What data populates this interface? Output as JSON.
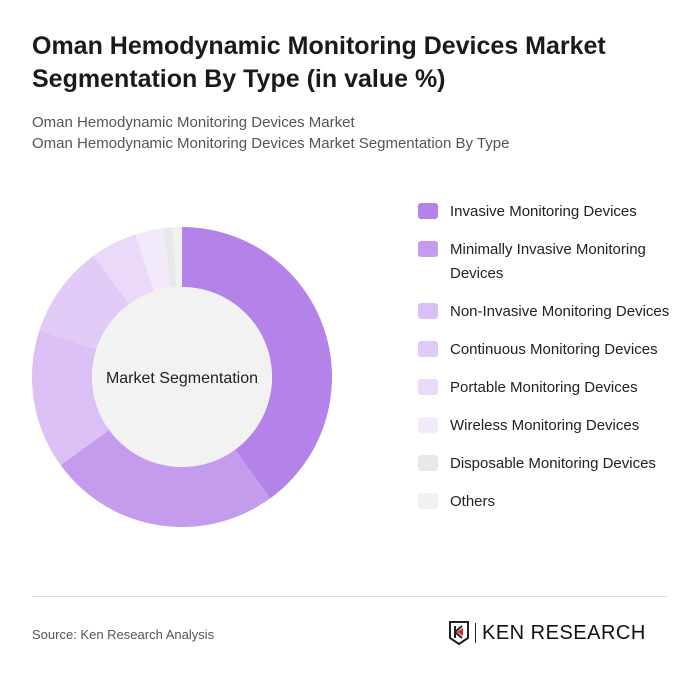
{
  "title": "Oman Hemodynamic Monitoring Devices Market Segmentation By Type (in value %)",
  "subtitle1": "Oman Hemodynamic Monitoring Devices Market",
  "subtitle2": "Oman Hemodynamic Monitoring Devices Market Segmentation By Type",
  "source": "Source: Ken Research Analysis",
  "logo_text": "KEN RESEARCH",
  "chart_data": {
    "type": "pie",
    "donut": true,
    "center_label": "Market Segmentation",
    "legend_position": "right",
    "categories": [
      "Invasive Monitoring Devices",
      "Minimally Invasive Monitoring Devices",
      "Non-Invasive Monitoring Devices",
      "Continuous Monitoring Devices",
      "Portable Monitoring Devices",
      "Wireless Monitoring Devices",
      "Disposable Monitoring Devices",
      "Others"
    ],
    "values": [
      40,
      25,
      15,
      10,
      5,
      3,
      1,
      1
    ],
    "colors": [
      "#b383ea",
      "#c59bee",
      "#dac0f5",
      "#e1cbf6",
      "#ead9f9",
      "#f2eafb",
      "#e8e8e8",
      "#f1f1f1"
    ]
  }
}
